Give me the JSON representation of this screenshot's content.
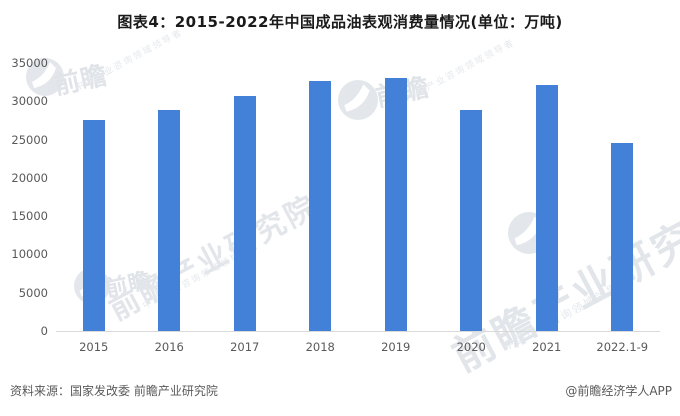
{
  "title": "图表4：2015-2022年中国成品油表观消费量情况(单位：万吨)",
  "chart_data": {
    "type": "bar",
    "title": "图表4：2015-2022年中国成品油表观消费量情况(单位：万吨)",
    "unit": "万吨",
    "categories": [
      "2015",
      "2016",
      "2017",
      "2018",
      "2019",
      "2020",
      "2021",
      "2022.1-9"
    ],
    "values": [
      27600,
      28900,
      30650,
      32650,
      33050,
      28900,
      32100,
      24600
    ],
    "xlabel": "",
    "ylabel": "",
    "ylim": [
      0,
      35000
    ],
    "yticks": [
      0,
      5000,
      10000,
      15000,
      20000,
      25000,
      30000,
      35000
    ],
    "grid": false,
    "legend": null,
    "bar_color": "#4381d8",
    "axis_line_color": "#d9d9d9",
    "tick_label_color": "#595959"
  },
  "footer": {
    "source": "资料来源：国家发改委 前瞻产业研究院",
    "brand": "@前瞻经济学人APP"
  },
  "watermarks": {
    "logo_icon": "qianzhan-logo",
    "brand_short": "前瞻",
    "brand_full": "前瞻产业研究院",
    "tagline": "中国产业咨询领域领导者"
  }
}
